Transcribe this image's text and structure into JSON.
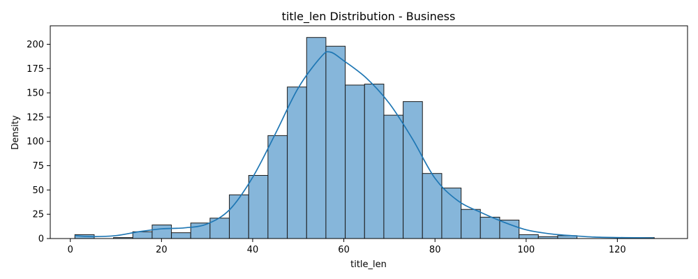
{
  "chart_data": {
    "type": "bar",
    "title": "title_len Distribution - Business",
    "xlabel": "title_len",
    "ylabel": "Density",
    "xlim": [
      -4.4,
      135.4
    ],
    "ylim": [
      0,
      219
    ],
    "xticks": [
      0,
      20,
      40,
      60,
      80,
      100,
      120
    ],
    "yticks": [
      0,
      25,
      50,
      75,
      100,
      125,
      150,
      175,
      200
    ],
    "grid": false,
    "bin_edges": [
      1,
      5.24,
      9.47,
      13.71,
      17.95,
      22.18,
      26.42,
      30.65,
      34.89,
      39.13,
      43.36,
      47.6,
      51.84,
      56.07,
      60.31,
      64.55,
      68.78,
      73.02,
      77.25,
      81.49,
      85.73,
      89.96,
      94.2,
      98.44,
      102.67,
      106.91,
      111.15,
      115.38,
      119.62,
      123.85,
      128.09
    ],
    "values": [
      4,
      0,
      1,
      7,
      14,
      6,
      16,
      21,
      45,
      65,
      106,
      156,
      207,
      198,
      158,
      159,
      127,
      141,
      67,
      52,
      30,
      22,
      19,
      4,
      2,
      3,
      0,
      0,
      0,
      1
    ],
    "kde": {
      "x": [
        1,
        5,
        10,
        15,
        20,
        25,
        30,
        35,
        40,
        45,
        50,
        55,
        57,
        60,
        65,
        70,
        75,
        80,
        85,
        90,
        95,
        100,
        105,
        110,
        115,
        120,
        125,
        128
      ],
      "y": [
        3,
        2,
        3,
        7,
        10,
        11,
        15,
        30,
        63,
        108,
        155,
        187,
        192,
        183,
        165,
        139,
        103,
        62,
        39,
        27,
        17,
        9,
        5,
        3,
        1.5,
        1,
        0.8,
        0.6
      ]
    },
    "colors": {
      "bar_fill": "#86b6da",
      "bar_edge": "#1a1a1a",
      "kde_line": "#1f77b4"
    }
  }
}
